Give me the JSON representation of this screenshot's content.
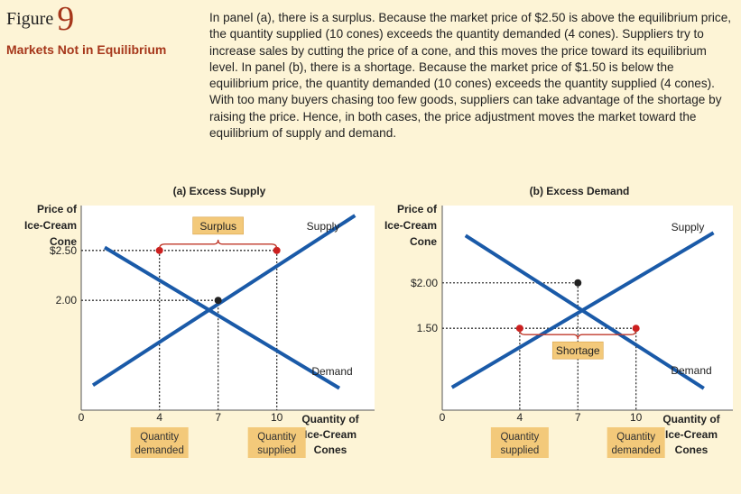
{
  "figure": {
    "label_word": "Figure",
    "label_num": "9",
    "title": "Markets Not in Equilibrium"
  },
  "caption": "In panel (a), there is a surplus. Because the market price of $2.50 is above the equilibrium price, the quantity supplied (10 cones) exceeds the quantity demanded (4 cones). Suppliers try to increase sales by cutting the price of a cone, and this moves the price toward its equilibrium level. In panel (b), there is a shortage. Because the market price of $1.50 is below the equilibrium price, the quantity demanded (10 cones) exceeds the quantity supplied (4 cones). With too many buyers chasing too few goods, suppliers can take advantage of the shortage by raising the price. Hence, in both cases, the price adjustment moves the market toward the equilibrium of supply and demand.",
  "colors": {
    "curve": "#1a5aa8",
    "point_red": "#cc1f1f",
    "point_black": "#222222",
    "bracket": "#c0392b",
    "label_box": "#f3c97a",
    "plot_bg": "#ffffff",
    "page_bg": "#fdf4d6",
    "accent": "#a6371b"
  },
  "chart_data": [
    {
      "type": "line",
      "title": "(a) Excess Supply",
      "ylabel": [
        "Price of",
        "Ice-Cream",
        "Cone"
      ],
      "xlabel": [
        "Quantity of",
        "Ice-Cream",
        "Cones"
      ],
      "x_ticks": [
        "0",
        "4",
        "7",
        "10"
      ],
      "y_ticks": [
        "$2.50",
        "2.00"
      ],
      "series": [
        {
          "name": "Supply",
          "points": [
            [
              0.6,
              1.15
            ],
            [
              14,
              2.85
            ]
          ]
        },
        {
          "name": "Demand",
          "points": [
            [
              1.2,
              2.53
            ],
            [
              13.2,
              1.12
            ]
          ]
        }
      ],
      "market_price": 2.5,
      "equilibrium": {
        "q": 7,
        "p": 2.0
      },
      "marked_points": [
        {
          "q": 4,
          "p": 2.5
        },
        {
          "q": 10,
          "p": 2.5
        }
      ],
      "gap_label": "Surplus",
      "gap_from": 4,
      "gap_to": 10,
      "qty_boxes": [
        {
          "q": 4,
          "lines": [
            "Quantity",
            "demanded"
          ]
        },
        {
          "q": 10,
          "lines": [
            "Quantity",
            "supplied"
          ]
        }
      ],
      "xlim": [
        0,
        15
      ],
      "ylim": [
        0.9,
        2.95
      ]
    },
    {
      "type": "line",
      "title": "(b) Excess Demand",
      "ylabel": [
        "Price of",
        "Ice-Cream",
        "Cone"
      ],
      "xlabel": [
        "Quantity of",
        "Ice-Cream",
        "Cones"
      ],
      "x_ticks": [
        "0",
        "4",
        "7",
        "10"
      ],
      "y_ticks": [
        "$2.00",
        "1.50"
      ],
      "series": [
        {
          "name": "Supply",
          "points": [
            [
              0.5,
              0.85
            ],
            [
              14,
              2.55
            ]
          ]
        },
        {
          "name": "Demand",
          "points": [
            [
              1.2,
              2.52
            ],
            [
              13.5,
              0.84
            ]
          ]
        }
      ],
      "market_price": 1.5,
      "equilibrium": {
        "q": 7,
        "p": 2.0
      },
      "marked_points": [
        {
          "q": 4,
          "p": 1.5
        },
        {
          "q": 10,
          "p": 1.5
        }
      ],
      "gap_label": "Shortage",
      "gap_from": 4,
      "gap_to": 10,
      "qty_boxes": [
        {
          "q": 4,
          "lines": [
            "Quantity",
            "supplied"
          ]
        },
        {
          "q": 10,
          "lines": [
            "Quantity",
            "demanded"
          ]
        }
      ],
      "xlim": [
        0,
        15
      ],
      "ylim": [
        0.6,
        2.85
      ]
    }
  ]
}
